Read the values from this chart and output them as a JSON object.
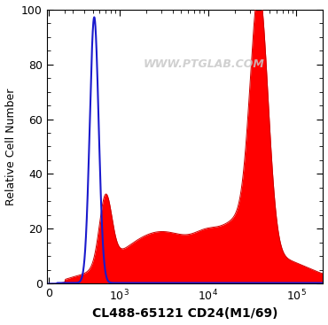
{
  "title": "",
  "xlabel": "CL488-65121 CD24(M1/69)",
  "ylabel": "Relative Cell Number",
  "ylim": [
    0,
    100
  ],
  "yticks": [
    0,
    20,
    40,
    60,
    80,
    100
  ],
  "watermark": "WWW.PTGLAB.COM",
  "bg_color": "#ffffff",
  "plot_bg_color": "#ffffff",
  "blue_line_color": "#1a1acd",
  "red_fill_color": "#ff0000",
  "red_edge_color": "#cc0000",
  "linthresh": 300,
  "linscale": 0.25
}
